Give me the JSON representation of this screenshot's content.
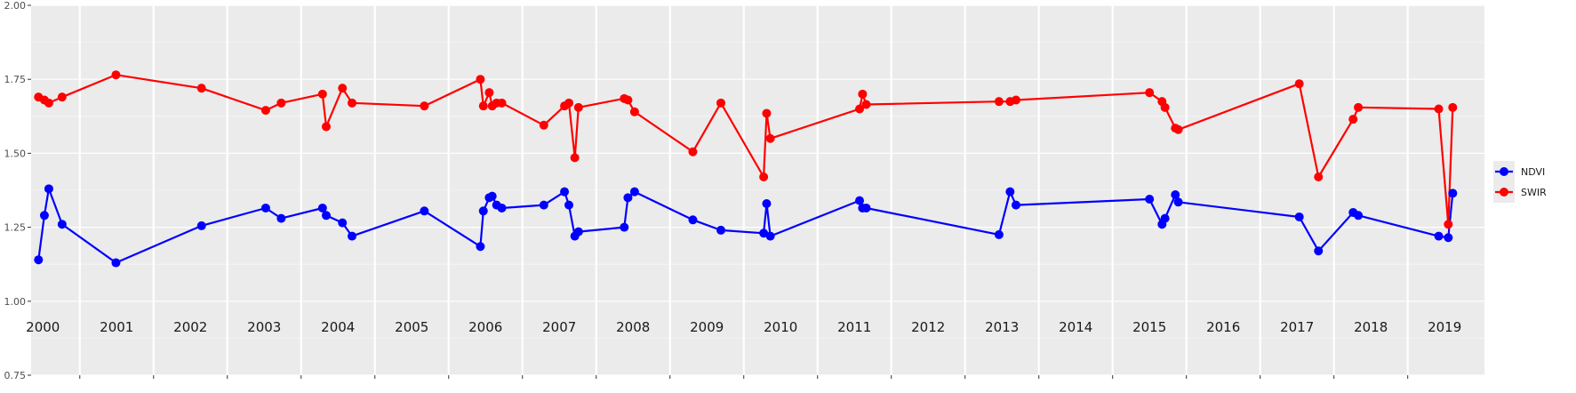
{
  "chart_data": {
    "type": "line",
    "title": "",
    "xlabel": "",
    "ylabel": "",
    "ylim": [
      0.75,
      2.0
    ],
    "xlim": [
      1999.84,
      2019.54
    ],
    "y_ticks": [
      0.75,
      1.0,
      1.25,
      1.5,
      1.75,
      2.0
    ],
    "y_tick_labels": [
      "0.75",
      "1.00",
      "1.25",
      "1.50",
      "1.75",
      "2.00"
    ],
    "x_labels": [
      "2000",
      "2001",
      "2002",
      "2003",
      "2004",
      "2005",
      "2006",
      "2007",
      "2008",
      "2009",
      "2010",
      "2011",
      "2012",
      "2013",
      "2014",
      "2015",
      "2016",
      "2017",
      "2018",
      "2019"
    ],
    "x_label_positions": [
      2000.0,
      2001.0,
      2002.0,
      2003.0,
      2004.0,
      2005.0,
      2006.0,
      2007.0,
      2008.0,
      2009.0,
      2010.0,
      2011.0,
      2012.0,
      2013.0,
      2014.0,
      2015.0,
      2016.0,
      2017.0,
      2018.0,
      2019.0
    ],
    "year_separators": [
      2000.5,
      2001.5,
      2002.5,
      2003.5,
      2004.5,
      2005.5,
      2006.5,
      2007.5,
      2008.5,
      2009.5,
      2010.5,
      2011.5,
      2012.5,
      2013.5,
      2014.5,
      2015.5,
      2016.5,
      2017.5,
      2018.5
    ],
    "grid": true,
    "legend_position": "right",
    "series": [
      {
        "name": "NDVI",
        "color": "#0000ff",
        "x": [
          1999.94,
          2000.02,
          2000.08,
          2000.26,
          2000.99,
          2002.15,
          2003.02,
          2003.23,
          2003.79,
          2003.84,
          2004.06,
          2004.19,
          2005.17,
          2005.93,
          2005.97,
          2006.05,
          2006.09,
          2006.15,
          2006.22,
          2006.79,
          2007.07,
          2007.13,
          2007.21,
          2007.26,
          2007.88,
          2007.93,
          2008.02,
          2008.81,
          2009.19,
          2009.77,
          2009.81,
          2009.86,
          2011.07,
          2011.11,
          2011.16,
          2012.96,
          2013.11,
          2013.19,
          2015.0,
          2015.17,
          2015.21,
          2015.35,
          2015.39,
          2017.03,
          2017.29,
          2017.76,
          2017.83,
          2018.92,
          2019.05,
          2019.11
        ],
        "values": [
          1.14,
          1.29,
          1.38,
          1.26,
          1.13,
          1.255,
          1.315,
          1.28,
          1.315,
          1.29,
          1.265,
          1.22,
          1.305,
          1.185,
          1.305,
          1.35,
          1.355,
          1.325,
          1.315,
          1.325,
          1.37,
          1.325,
          1.22,
          1.235,
          1.25,
          1.35,
          1.37,
          1.275,
          1.24,
          1.23,
          1.33,
          1.22,
          1.34,
          1.315,
          1.315,
          1.225,
          1.37,
          1.325,
          1.345,
          1.26,
          1.28,
          1.36,
          1.335,
          1.285,
          1.17,
          1.3,
          1.29,
          1.22,
          1.215,
          1.365
        ]
      },
      {
        "name": "SWIR",
        "color": "#ff0000",
        "x": [
          1999.94,
          2000.02,
          2000.08,
          2000.26,
          2000.99,
          2002.15,
          2003.02,
          2003.23,
          2003.79,
          2003.84,
          2004.06,
          2004.19,
          2005.17,
          2005.93,
          2005.97,
          2006.05,
          2006.09,
          2006.15,
          2006.22,
          2006.79,
          2007.07,
          2007.13,
          2007.21,
          2007.26,
          2007.88,
          2007.93,
          2008.02,
          2008.81,
          2009.19,
          2009.77,
          2009.81,
          2009.86,
          2011.07,
          2011.11,
          2011.16,
          2012.96,
          2013.11,
          2013.19,
          2015.0,
          2015.17,
          2015.21,
          2015.35,
          2015.39,
          2017.03,
          2017.29,
          2017.76,
          2017.83,
          2018.92,
          2019.05,
          2019.11
        ],
        "values": [
          1.69,
          1.68,
          1.67,
          1.69,
          1.765,
          1.72,
          1.645,
          1.67,
          1.7,
          1.59,
          1.72,
          1.67,
          1.66,
          1.75,
          1.66,
          1.705,
          1.66,
          1.67,
          1.67,
          1.595,
          1.66,
          1.67,
          1.485,
          1.655,
          1.685,
          1.68,
          1.64,
          1.505,
          1.67,
          1.42,
          1.635,
          1.55,
          1.65,
          1.7,
          1.665,
          1.675,
          1.675,
          1.68,
          1.705,
          1.675,
          1.655,
          1.585,
          1.58,
          1.735,
          1.42,
          1.615,
          1.655,
          1.65,
          1.26,
          1.655
        ]
      }
    ]
  }
}
